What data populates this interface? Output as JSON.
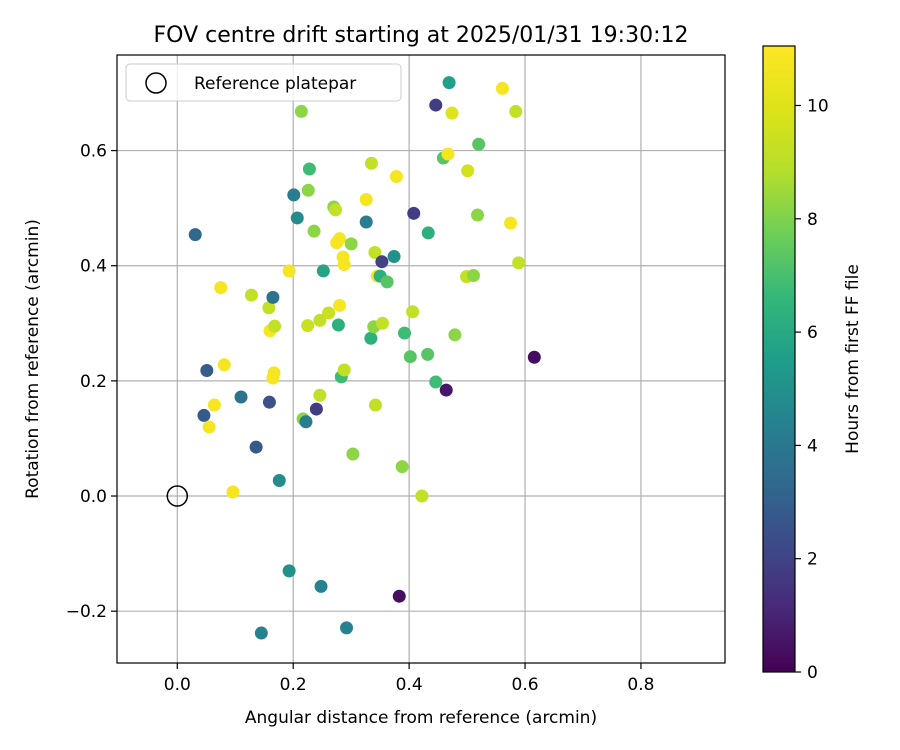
{
  "chart_data": {
    "type": "scatter",
    "title": "FOV centre drift starting at 2025/01/31 19:30:12",
    "xlabel": "Angular distance from reference (arcmin)",
    "ylabel": "Rotation from reference (arcmin)",
    "xlim": [
      -0.104,
      0.945
    ],
    "ylim": [
      -0.29,
      0.766
    ],
    "xticks": [
      0.0,
      0.2,
      0.4,
      0.6,
      0.8
    ],
    "xtick_labels": [
      "0.0",
      "0.2",
      "0.4",
      "0.6",
      "0.8"
    ],
    "yticks": [
      -0.2,
      0.0,
      0.2,
      0.4,
      0.6
    ],
    "ytick_labels": [
      "−0.2",
      "0.0",
      "0.2",
      "0.4",
      "0.6"
    ],
    "grid": true,
    "legend": {
      "position": "top-left",
      "entries": [
        "Reference platepar"
      ]
    },
    "reference_point": {
      "x": 0.0,
      "y": 0.0
    },
    "colorbar": {
      "label": "Hours from first FF file",
      "range": [
        0,
        11.05
      ],
      "ticks": [
        0,
        2,
        4,
        6,
        8,
        10
      ],
      "tick_labels": [
        "0",
        "2",
        "4",
        "6",
        "8",
        "10"
      ],
      "colormap": "viridis"
    },
    "points": [
      {
        "x": 0.031,
        "y": 0.454,
        "c": 3.3
      },
      {
        "x": 0.046,
        "y": 0.14,
        "c": 2.8
      },
      {
        "x": 0.051,
        "y": 0.218,
        "c": 2.9
      },
      {
        "x": 0.055,
        "y": 0.12,
        "c": 10.8
      },
      {
        "x": 0.064,
        "y": 0.158,
        "c": 10.8
      },
      {
        "x": 0.075,
        "y": 0.362,
        "c": 10.8
      },
      {
        "x": 0.081,
        "y": 0.228,
        "c": 10.8
      },
      {
        "x": 0.096,
        "y": 0.007,
        "c": 10.8
      },
      {
        "x": 0.11,
        "y": 0.172,
        "c": 3.8
      },
      {
        "x": 0.128,
        "y": 0.349,
        "c": 9.2
      },
      {
        "x": 0.136,
        "y": 0.085,
        "c": 2.8
      },
      {
        "x": 0.145,
        "y": -0.238,
        "c": 4.4
      },
      {
        "x": 0.158,
        "y": 0.327,
        "c": 9.2
      },
      {
        "x": 0.159,
        "y": 0.163,
        "c": 2.5
      },
      {
        "x": 0.16,
        "y": 0.287,
        "c": 10.8
      },
      {
        "x": 0.165,
        "y": 0.345,
        "c": 3.8
      },
      {
        "x": 0.165,
        "y": 0.205,
        "c": 10.8
      },
      {
        "x": 0.167,
        "y": 0.214,
        "c": 10.8
      },
      {
        "x": 0.168,
        "y": 0.295,
        "c": 9.2
      },
      {
        "x": 0.176,
        "y": 0.027,
        "c": 4.8
      },
      {
        "x": 0.193,
        "y": 0.391,
        "c": 10.8
      },
      {
        "x": 0.193,
        "y": -0.13,
        "c": 5.0
      },
      {
        "x": 0.201,
        "y": 0.523,
        "c": 4.2
      },
      {
        "x": 0.207,
        "y": 0.483,
        "c": 4.8
      },
      {
        "x": 0.214,
        "y": 0.668,
        "c": 8.2
      },
      {
        "x": 0.217,
        "y": 0.134,
        "c": 8.2
      },
      {
        "x": 0.222,
        "y": 0.129,
        "c": 4.2
      },
      {
        "x": 0.225,
        "y": 0.296,
        "c": 9.4
      },
      {
        "x": 0.226,
        "y": 0.531,
        "c": 8.2
      },
      {
        "x": 0.228,
        "y": 0.568,
        "c": 6.8
      },
      {
        "x": 0.236,
        "y": 0.46,
        "c": 8.2
      },
      {
        "x": 0.24,
        "y": 0.151,
        "c": 1.8
      },
      {
        "x": 0.246,
        "y": 0.305,
        "c": 9.2
      },
      {
        "x": 0.246,
        "y": 0.175,
        "c": 9.2
      },
      {
        "x": 0.248,
        "y": -0.157,
        "c": 4.4
      },
      {
        "x": 0.252,
        "y": 0.391,
        "c": 5.8
      },
      {
        "x": 0.261,
        "y": 0.318,
        "c": 9.4
      },
      {
        "x": 0.27,
        "y": 0.502,
        "c": 8.2
      },
      {
        "x": 0.273,
        "y": 0.497,
        "c": 9.2
      },
      {
        "x": 0.275,
        "y": 0.44,
        "c": 10.8
      },
      {
        "x": 0.278,
        "y": 0.297,
        "c": 6.3
      },
      {
        "x": 0.28,
        "y": 0.447,
        "c": 10.8
      },
      {
        "x": 0.28,
        "y": 0.331,
        "c": 10.8
      },
      {
        "x": 0.283,
        "y": 0.207,
        "c": 6.8
      },
      {
        "x": 0.286,
        "y": 0.415,
        "c": 10.8
      },
      {
        "x": 0.288,
        "y": 0.219,
        "c": 9.2
      },
      {
        "x": 0.288,
        "y": 0.402,
        "c": 10.8
      },
      {
        "x": 0.292,
        "y": -0.229,
        "c": 4.4
      },
      {
        "x": 0.3,
        "y": 0.438,
        "c": 8.2
      },
      {
        "x": 0.303,
        "y": 0.073,
        "c": 8.2
      },
      {
        "x": 0.326,
        "y": 0.515,
        "c": 10.8
      },
      {
        "x": 0.326,
        "y": 0.476,
        "c": 4.2
      },
      {
        "x": 0.334,
        "y": 0.274,
        "c": 6.3
      },
      {
        "x": 0.335,
        "y": 0.578,
        "c": 9.2
      },
      {
        "x": 0.339,
        "y": 0.294,
        "c": 8.2
      },
      {
        "x": 0.341,
        "y": 0.423,
        "c": 9.2
      },
      {
        "x": 0.342,
        "y": 0.158,
        "c": 9.2
      },
      {
        "x": 0.345,
        "y": 0.382,
        "c": 10.8
      },
      {
        "x": 0.35,
        "y": 0.382,
        "c": 6.3
      },
      {
        "x": 0.353,
        "y": 0.407,
        "c": 2.0
      },
      {
        "x": 0.354,
        "y": 0.3,
        "c": 9.2
      },
      {
        "x": 0.362,
        "y": 0.372,
        "c": 7.3
      },
      {
        "x": 0.374,
        "y": 0.416,
        "c": 5.0
      },
      {
        "x": 0.378,
        "y": 0.555,
        "c": 10.8
      },
      {
        "x": 0.383,
        "y": -0.174,
        "c": 0.4
      },
      {
        "x": 0.388,
        "y": 0.051,
        "c": 8.2
      },
      {
        "x": 0.392,
        "y": 0.283,
        "c": 6.8
      },
      {
        "x": 0.402,
        "y": 0.242,
        "c": 7.3
      },
      {
        "x": 0.406,
        "y": 0.32,
        "c": 9.2
      },
      {
        "x": 0.408,
        "y": 0.491,
        "c": 1.8
      },
      {
        "x": 0.422,
        "y": 0.0,
        "c": 9.2
      },
      {
        "x": 0.432,
        "y": 0.246,
        "c": 7.3
      },
      {
        "x": 0.433,
        "y": 0.457,
        "c": 6.3
      },
      {
        "x": 0.446,
        "y": 0.198,
        "c": 6.8
      },
      {
        "x": 0.446,
        "y": 0.679,
        "c": 1.8
      },
      {
        "x": 0.459,
        "y": 0.587,
        "c": 7.3
      },
      {
        "x": 0.464,
        "y": 0.184,
        "c": 0.6
      },
      {
        "x": 0.467,
        "y": 0.594,
        "c": 10.8
      },
      {
        "x": 0.469,
        "y": 0.718,
        "c": 5.6
      },
      {
        "x": 0.474,
        "y": 0.665,
        "c": 10.0
      },
      {
        "x": 0.479,
        "y": 0.28,
        "c": 8.2
      },
      {
        "x": 0.499,
        "y": 0.381,
        "c": 9.2
      },
      {
        "x": 0.501,
        "y": 0.565,
        "c": 9.7
      },
      {
        "x": 0.511,
        "y": 0.383,
        "c": 8.2
      },
      {
        "x": 0.518,
        "y": 0.488,
        "c": 8.2
      },
      {
        "x": 0.52,
        "y": 0.611,
        "c": 7.3
      },
      {
        "x": 0.561,
        "y": 0.708,
        "c": 10.8
      },
      {
        "x": 0.575,
        "y": 0.474,
        "c": 10.8
      },
      {
        "x": 0.584,
        "y": 0.668,
        "c": 9.2
      },
      {
        "x": 0.589,
        "y": 0.405,
        "c": 9.2
      },
      {
        "x": 0.616,
        "y": 0.241,
        "c": 0.4
      }
    ]
  }
}
